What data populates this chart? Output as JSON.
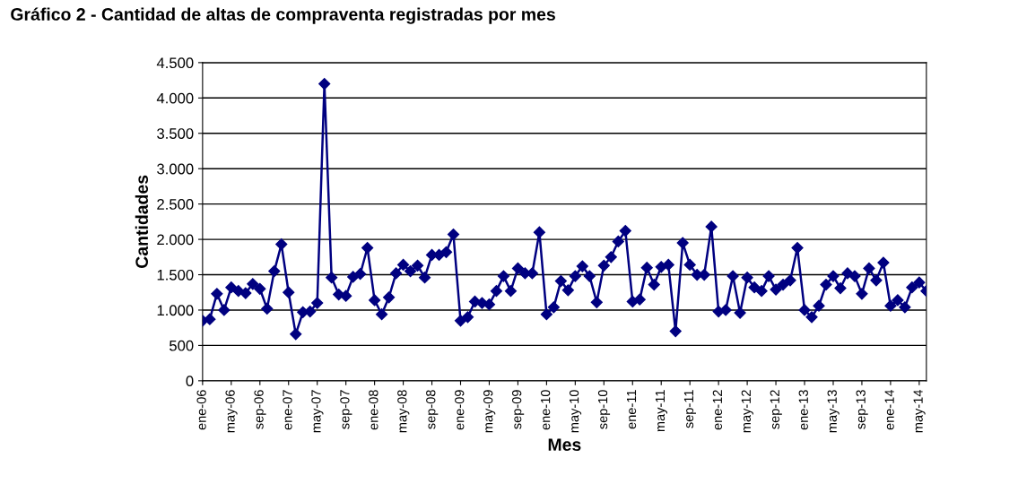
{
  "chart_data": {
    "type": "line",
    "title": "Gráfico 2 - Cantidad de altas de compraventa registradas por mes",
    "xlabel": "Mes",
    "ylabel": "Cantidades",
    "categories": [
      "ene-06",
      null,
      null,
      null,
      "may-06",
      null,
      null,
      null,
      "sep-06",
      null,
      null,
      null,
      "ene-07",
      null,
      null,
      null,
      "may-07",
      null,
      null,
      null,
      "sep-07",
      null,
      null,
      null,
      "ene-08",
      null,
      null,
      null,
      "may-08",
      null,
      null,
      null,
      "sep-08",
      null,
      null,
      null,
      "ene-09",
      null,
      null,
      null,
      "may-09",
      null,
      null,
      null,
      "sep-09",
      null,
      null,
      null,
      "ene-10",
      null,
      null,
      null,
      "may-10",
      null,
      null,
      null,
      "sep-10",
      null,
      null,
      null,
      "ene-11",
      null,
      null,
      null,
      "may-11",
      null,
      null,
      null,
      "sep-11",
      null,
      null,
      null,
      "ene-12",
      null,
      null,
      null,
      "may-12",
      null,
      null,
      null,
      "sep-12",
      null,
      null,
      null,
      "ene-13",
      null,
      null,
      null,
      "may-13",
      null,
      null,
      null,
      "sep-13",
      null,
      null,
      null,
      "ene-14",
      null,
      null,
      null,
      "may-14",
      null
    ],
    "series": [
      {
        "color": "#000080",
        "values": [
          850,
          870,
          1230,
          1000,
          1320,
          1270,
          1240,
          1370,
          1300,
          1020,
          1550,
          1930,
          1250,
          660,
          970,
          980,
          1100,
          4200,
          1460,
          1220,
          1200,
          1470,
          1510,
          1880,
          1140,
          940,
          1180,
          1520,
          1640,
          1550,
          1630,
          1460,
          1780,
          1780,
          1820,
          2070,
          850,
          900,
          1120,
          1100,
          1080,
          1270,
          1480,
          1270,
          1590,
          1520,
          1520,
          2100,
          940,
          1040,
          1410,
          1280,
          1480,
          1620,
          1480,
          1110,
          1630,
          1750,
          1970,
          2120,
          1120,
          1150,
          1600,
          1360,
          1610,
          1640,
          700,
          1950,
          1640,
          1500,
          1500,
          2180,
          980,
          1000,
          1480,
          960,
          1460,
          1320,
          1270,
          1480,
          1290,
          1360,
          1420,
          1880,
          1000,
          900,
          1060,
          1360,
          1480,
          1310,
          1520,
          1480,
          1230,
          1590,
          1420,
          1670,
          1060,
          1140,
          1040,
          1320,
          1390,
          1270
        ]
      }
    ],
    "ylim": [
      0,
      4500
    ],
    "yticks": [
      0,
      500,
      {
        "value": 1000,
        "label": "1.000"
      },
      {
        "value": 1500,
        "label": "1.500"
      },
      {
        "value": 2000,
        "label": "2.000"
      },
      {
        "value": 2500,
        "label": "2.500"
      },
      {
        "value": 3000,
        "label": "3.000"
      },
      {
        "value": 3500,
        "label": "3.500"
      },
      {
        "value": 4000,
        "label": "4.000"
      },
      {
        "value": 4500,
        "label": "4.500"
      }
    ],
    "grid": "y",
    "marker": "diamond",
    "line_style": "solid",
    "legend": false
  }
}
